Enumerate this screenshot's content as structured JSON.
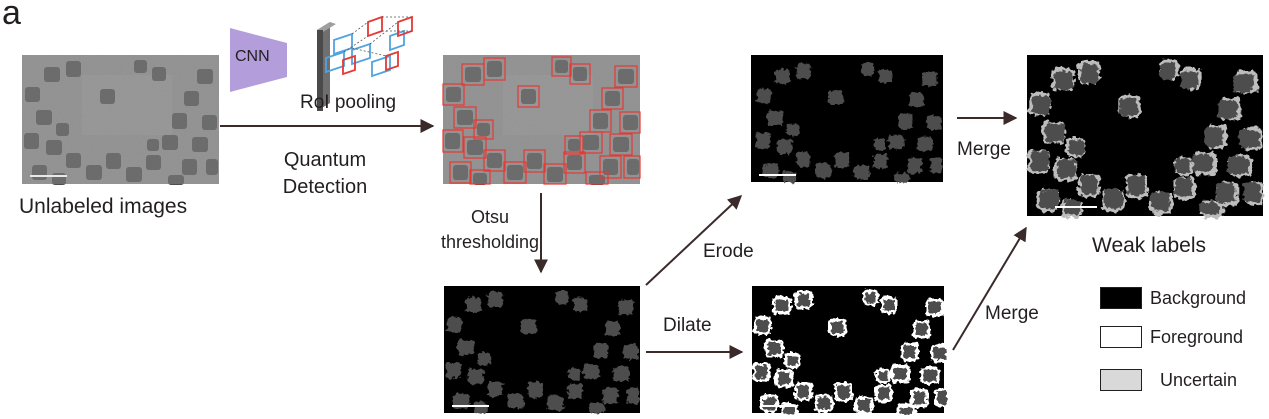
{
  "panel_label": "a",
  "labels": {
    "unlabeled_images": "Unlabeled images",
    "cnn": "CNN",
    "roi_pooling": "RoI pooling",
    "quantum_detection_line1": "Quantum",
    "quantum_detection_line2": "Detection",
    "otsu_line1": "Otsu",
    "otsu_line2": "thresholding",
    "erode": "Erode",
    "dilate": "Dilate",
    "merge_top": "Merge",
    "merge_bottom": "Merge",
    "weak_labels": "Weak labels"
  },
  "legend": [
    {
      "label": "Background",
      "color": "#000000"
    },
    {
      "label": "Foreground",
      "color": "#ffffff"
    },
    {
      "label": "Uncertain",
      "color": "#d9d9d9"
    }
  ],
  "colors": {
    "arrow": "#3a2a2a",
    "cnn": "#b39ddb",
    "box_red": "#e53935",
    "box_blue": "#4fa3e0",
    "tem_bg": "#9a9a9a",
    "particle": "#4a4a4a"
  }
}
